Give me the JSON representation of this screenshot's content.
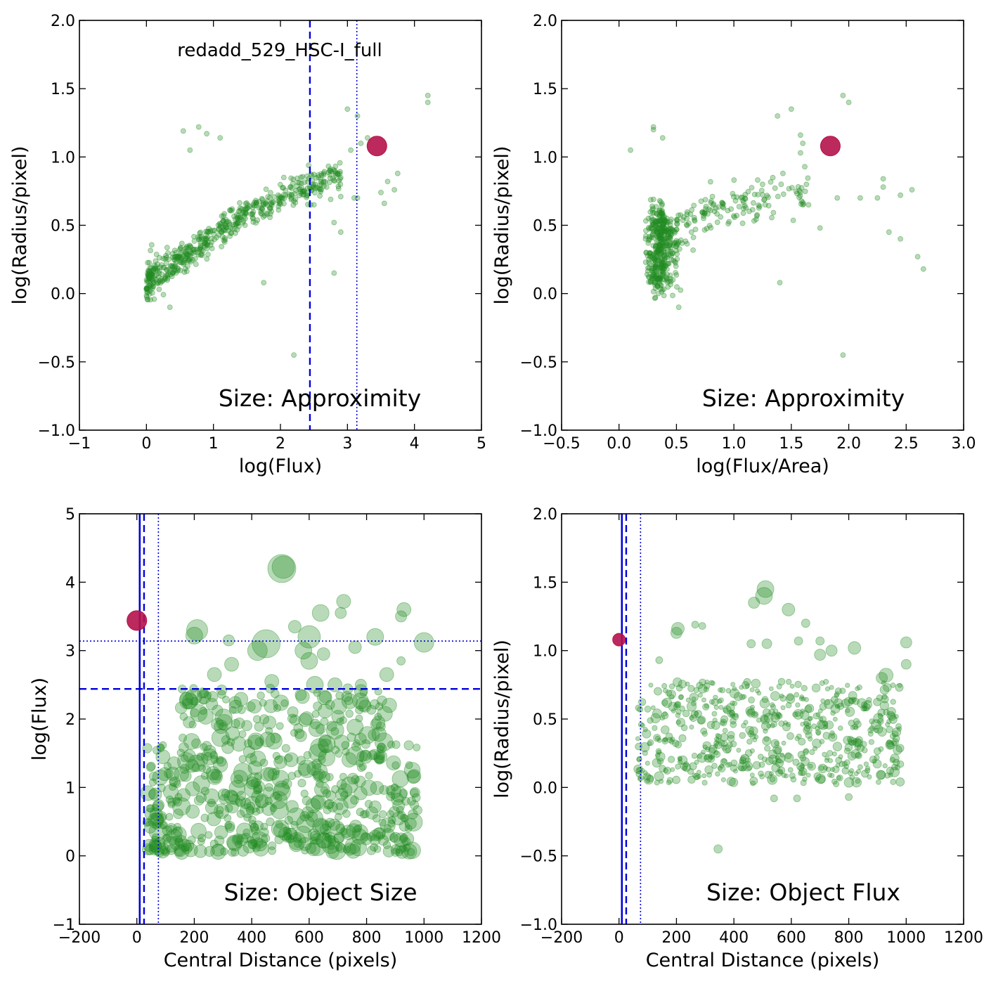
{
  "colors": {
    "scatter": "#228B22",
    "highlight": "#B5124B",
    "lines": "#0000DD"
  },
  "chart_data": [
    {
      "type": "scatter",
      "panel": "top-left",
      "title": "redadd_529_HSC-I_full",
      "annotation": "Size: Approximity",
      "xlabel": "log(Flux)",
      "ylabel": "log(Radius/pixel)",
      "xlim": [
        -1,
        5
      ],
      "ylim": [
        -1.0,
        2.0
      ],
      "xticks": [
        -1,
        0,
        1,
        2,
        3,
        4,
        5
      ],
      "xtick_labels": [
        "−1",
        "0",
        "1",
        "2",
        "3",
        "4",
        "5"
      ],
      "yticks": [
        -1.0,
        -0.5,
        0.0,
        0.5,
        1.0,
        1.5,
        2.0
      ],
      "ytick_labels": [
        "−1.0",
        "−0.5",
        "0.0",
        "0.5",
        "1.0",
        "1.5",
        "2.0"
      ],
      "vlines": [
        {
          "x": 2.44,
          "style": "dashed"
        },
        {
          "x": 3.14,
          "style": "dotted"
        }
      ],
      "hlines": [],
      "highlight": {
        "x": 3.44,
        "y": 1.08
      },
      "points": [
        [
          0.55,
          1.19
        ],
        [
          0.78,
          1.22
        ],
        [
          0.9,
          1.17
        ],
        [
          1.1,
          1.14
        ],
        [
          0.65,
          1.05
        ],
        [
          2.05,
          0.85
        ],
        [
          2.4,
          0.72
        ],
        [
          3.0,
          1.35
        ],
        [
          3.15,
          1.3
        ],
        [
          3.2,
          1.1
        ],
        [
          3.3,
          1.14
        ],
        [
          3.05,
          1.05
        ],
        [
          4.2,
          1.45
        ],
        [
          4.2,
          1.4
        ],
        [
          3.75,
          0.88
        ],
        [
          3.6,
          0.82
        ],
        [
          3.7,
          0.76
        ],
        [
          3.5,
          0.74
        ],
        [
          3.55,
          0.66
        ],
        [
          2.45,
          0.65
        ],
        [
          2.5,
          0.65
        ],
        [
          2.75,
          0.69
        ],
        [
          2.9,
          0.71
        ],
        [
          3.1,
          0.7
        ],
        [
          3.15,
          0.7
        ],
        [
          2.8,
          0.52
        ],
        [
          2.9,
          0.45
        ],
        [
          2.8,
          0.15
        ],
        [
          1.75,
          0.08
        ],
        [
          2.2,
          -0.45
        ],
        [
          0.35,
          -0.1
        ]
      ],
      "cloud": {
        "seed": 11,
        "count": 560,
        "x0": 0.0,
        "x1": 2.9,
        "slope_lo": 0.35,
        "slope_hi": 0.22,
        "break": 1.3,
        "y0": 0.08,
        "spread": 0.07,
        "r": [
          3.5,
          3.5
        ]
      }
    },
    {
      "type": "scatter",
      "panel": "top-right",
      "title": "",
      "annotation": "Size: Approximity",
      "xlabel": "log(Flux/Area)",
      "ylabel": "log(Radius/pixel)",
      "xlim": [
        -0.5,
        3.0
      ],
      "ylim": [
        -1.0,
        2.0
      ],
      "xticks": [
        -0.5,
        0.0,
        0.5,
        1.0,
        1.5,
        2.0,
        2.5,
        3.0
      ],
      "xtick_labels": [
        "−0.5",
        "0.0",
        "0.5",
        "1.0",
        "1.5",
        "2.0",
        "2.5",
        "3.0"
      ],
      "yticks": [
        -1.0,
        -0.5,
        0.0,
        0.5,
        1.0,
        1.5,
        2.0
      ],
      "ytick_labels": [
        "−1.0",
        "−0.5",
        "0.0",
        "0.5",
        "1.0",
        "1.5",
        "2.0"
      ],
      "vlines": [],
      "hlines": [],
      "highlight": {
        "x": 1.84,
        "y": 1.08
      },
      "points": [
        [
          0.3,
          1.2
        ],
        [
          0.3,
          1.22
        ],
        [
          0.38,
          1.14
        ],
        [
          0.1,
          1.05
        ],
        [
          1.5,
          1.35
        ],
        [
          1.38,
          1.3
        ],
        [
          1.95,
          1.45
        ],
        [
          2.0,
          1.4
        ],
        [
          1.58,
          1.16
        ],
        [
          1.6,
          1.1
        ],
        [
          1.58,
          1.03
        ],
        [
          2.3,
          0.84
        ],
        [
          2.55,
          0.76
        ],
        [
          2.45,
          0.72
        ],
        [
          2.3,
          0.78
        ],
        [
          2.25,
          0.7
        ],
        [
          2.1,
          0.7
        ],
        [
          1.9,
          0.7
        ],
        [
          1.6,
          0.65
        ],
        [
          1.65,
          0.65
        ],
        [
          2.35,
          0.45
        ],
        [
          2.45,
          0.4
        ],
        [
          2.6,
          0.27
        ],
        [
          2.65,
          0.18
        ],
        [
          1.4,
          0.08
        ],
        [
          1.95,
          -0.45
        ],
        [
          0.52,
          -0.1
        ],
        [
          1.75,
          0.48
        ]
      ],
      "cloud_tr": {
        "seed": 23,
        "count": 560,
        "r": [
          3.5,
          3.5
        ]
      }
    },
    {
      "type": "scatter",
      "panel": "bottom-left",
      "title": "",
      "annotation": "Size: Object Size",
      "xlabel": "Central Distance (pixels)",
      "ylabel": "log(Flux)",
      "xlim": [
        -200,
        1200
      ],
      "ylim": [
        -1,
        5
      ],
      "xticks": [
        -200,
        0,
        200,
        400,
        600,
        800,
        1000,
        1200
      ],
      "xtick_labels": [
        "−200",
        "0",
        "200",
        "400",
        "600",
        "800",
        "1000",
        "1200"
      ],
      "yticks": [
        -1,
        0,
        1,
        2,
        3,
        4,
        5
      ],
      "ytick_labels": [
        "−1",
        "0",
        "1",
        "2",
        "3",
        "4",
        "5"
      ],
      "vlines": [
        {
          "x": 10,
          "style": "solid"
        },
        {
          "x": 25,
          "style": "dashed"
        },
        {
          "x": 75,
          "style": "dotted"
        }
      ],
      "hlines": [
        {
          "y": 2.44,
          "style": "dashed"
        },
        {
          "y": 3.14,
          "style": "dotted"
        }
      ],
      "highlight": {
        "x": 0,
        "y": 3.44
      },
      "points": [
        [
          505,
          4.2,
          20
        ],
        [
          510,
          4.22,
          16
        ],
        [
          210,
          3.3,
          15
        ],
        [
          200,
          3.22,
          12
        ],
        [
          640,
          3.55,
          12
        ],
        [
          720,
          3.72,
          10
        ],
        [
          710,
          3.55,
          8
        ],
        [
          830,
          3.2,
          12
        ],
        [
          930,
          3.6,
          10
        ],
        [
          920,
          3.5,
          8
        ],
        [
          1000,
          3.12,
          14
        ],
        [
          600,
          3.2,
          16
        ],
        [
          580,
          3.0,
          12
        ],
        [
          550,
          3.35,
          9
        ],
        [
          450,
          3.1,
          20
        ],
        [
          420,
          3.0,
          14
        ],
        [
          320,
          3.15,
          8
        ],
        [
          270,
          2.65,
          10
        ],
        [
          330,
          2.8,
          10
        ],
        [
          600,
          2.85,
          12
        ],
        [
          650,
          2.95,
          9
        ],
        [
          760,
          3.05,
          9
        ],
        [
          920,
          2.85,
          6
        ],
        [
          870,
          2.65,
          10
        ],
        [
          780,
          2.5,
          8
        ],
        [
          690,
          2.5,
          10
        ],
        [
          620,
          2.5,
          12
        ],
        [
          470,
          2.55,
          10
        ]
      ],
      "cloud": {
        "seed": 37,
        "count": 620,
        "x0": 30,
        "x1": 980,
        "y0": 0.05,
        "y1": 2.45,
        "r": [
          5,
          13
        ]
      }
    },
    {
      "type": "scatter",
      "panel": "bottom-right",
      "title": "",
      "annotation": "Size: Object Flux",
      "xlabel": "Central Distance (pixels)",
      "ylabel": "log(Radius/pixel)",
      "xlim": [
        -200,
        1200
      ],
      "ylim": [
        -1.0,
        2.0
      ],
      "xticks": [
        -200,
        0,
        200,
        400,
        600,
        800,
        1000,
        1200
      ],
      "xtick_labels": [
        "−200",
        "0",
        "200",
        "400",
        "600",
        "800",
        "1000",
        "1200"
      ],
      "yticks": [
        -1.0,
        -0.5,
        0.0,
        0.5,
        1.0,
        1.5,
        2.0
      ],
      "ytick_labels": [
        "−1.0",
        "−0.5",
        "0.0",
        "0.5",
        "1.0",
        "1.5",
        "2.0"
      ],
      "vlines": [
        {
          "x": 10,
          "style": "solid"
        },
        {
          "x": 25,
          "style": "dashed"
        },
        {
          "x": 75,
          "style": "dotted"
        }
      ],
      "hlines": [],
      "highlight": {
        "x": 0,
        "y": 1.08
      },
      "points": [
        [
          510,
          1.45,
          12
        ],
        [
          505,
          1.4,
          12
        ],
        [
          470,
          1.35,
          8
        ],
        [
          590,
          1.3,
          9
        ],
        [
          650,
          1.2,
          6
        ],
        [
          205,
          1.16,
          9
        ],
        [
          200,
          1.13,
          8
        ],
        [
          265,
          1.19,
          5
        ],
        [
          290,
          1.18,
          5
        ],
        [
          820,
          1.02,
          9
        ],
        [
          1000,
          1.06,
          8
        ],
        [
          930,
          0.82,
          10
        ],
        [
          915,
          0.8,
          8
        ],
        [
          1000,
          0.9,
          7
        ],
        [
          515,
          1.05,
          7
        ],
        [
          460,
          1.05,
          6
        ],
        [
          625,
          1.07,
          6
        ],
        [
          700,
          1.07,
          6
        ],
        [
          740,
          1.0,
          8
        ],
        [
          345,
          -0.45,
          6
        ],
        [
          540,
          -0.08,
          5
        ],
        [
          620,
          -0.08,
          5
        ],
        [
          800,
          -0.07,
          5
        ],
        [
          140,
          0.93,
          5
        ],
        [
          700,
          0.97,
          8
        ]
      ],
      "cloud": {
        "seed": 53,
        "count": 600,
        "x0": 60,
        "x1": 980,
        "y0": 0.02,
        "y1": 0.78,
        "r": [
          3,
          7
        ]
      }
    }
  ]
}
